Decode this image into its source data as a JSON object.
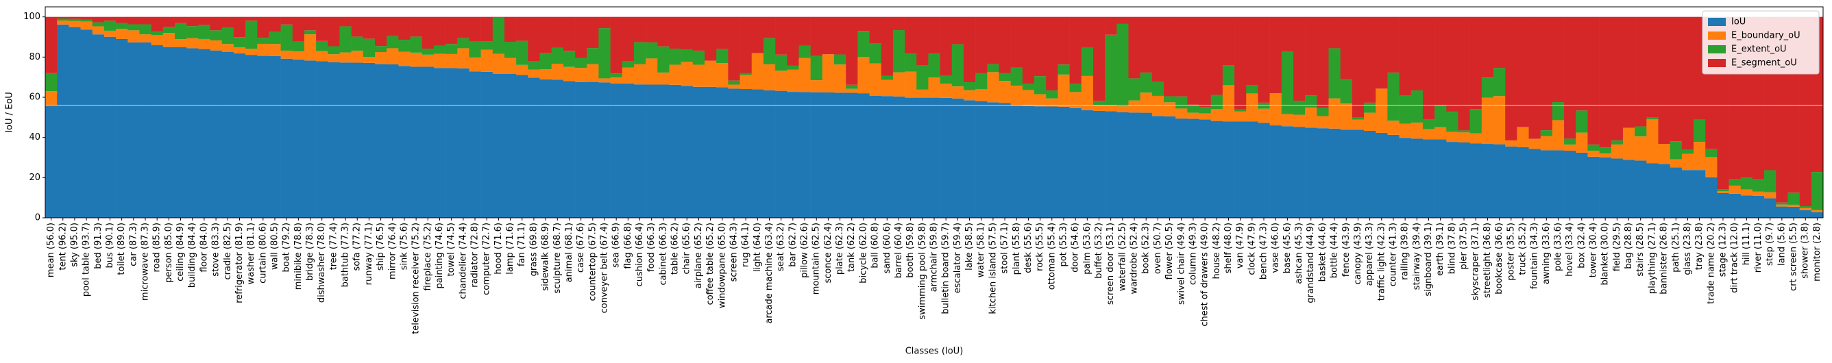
{
  "chart_data": {
    "type": "stacked_bar",
    "x_label": "Classes (IoU)",
    "y_label": "IoU / EoU",
    "categories": [
      "mean (56.0)",
      "tent (96.2)",
      "sky (95.0)",
      "pool table (93.7)",
      "bed (91.3)",
      "bus (90.1)",
      "toilet (89.0)",
      "car (87.3)",
      "microwave (87.3)",
      "road (85.9)",
      "person (85.0)",
      "ceiling (84.9)",
      "building (84.4)",
      "floor (84.0)",
      "stove (83.3)",
      "cradle (82.5)",
      "refrigerator (81.9)",
      "washer (81.1)",
      "curtain (80.6)",
      "wall (80.5)",
      "boat (79.2)",
      "minibike (78.8)",
      "bridge (78.3)",
      "dishwasher (78.0)",
      "tree (77.4)",
      "bathtub (77.3)",
      "sofa (77.2)",
      "runway (77.1)",
      "ship (76.5)",
      "mirror (76.4)",
      "sink (75.6)",
      "television receiver (75.2)",
      "fireplace (75.2)",
      "painting (74.6)",
      "towel (74.5)",
      "chandelier (74.4)",
      "radiator (72.8)",
      "computer (72.7)",
      "hood (71.6)",
      "lamp (71.6)",
      "fan (71.1)",
      "grass (69.8)",
      "sidewalk (68.9)",
      "sculpture (68.7)",
      "animal (68.1)",
      "case (67.6)",
      "countertop (67.5)",
      "conveyer belt (67.4)",
      "sea (66.9)",
      "flag (66.8)",
      "cushion (66.4)",
      "food (66.3)",
      "cabinet (66.3)",
      "table (66.2)",
      "chair (65.6)",
      "airplane (65.2)",
      "coffee table (65.2)",
      "windowpane (65.0)",
      "screen (64.3)",
      "rug (64.1)",
      "light (64.0)",
      "arcade machine (63.4)",
      "seat (63.2)",
      "bar (62.7)",
      "pillow (62.6)",
      "mountain (62.5)",
      "sconce (62.4)",
      "plate (62.3)",
      "tank (62.2)",
      "bicycle (62.0)",
      "ball (60.8)",
      "sand (60.6)",
      "barrel (60.4)",
      "booth (59.8)",
      "swimming pool (59.8)",
      "armchair (59.8)",
      "bulletin board (59.7)",
      "escalator (59.4)",
      "lake (58.5)",
      "water (58.1)",
      "kitchen island (57.5)",
      "stool (57.1)",
      "plant (55.8)",
      "desk (55.6)",
      "rock (55.5)",
      "ottoman (55.4)",
      "pot (55.3)",
      "door (54.6)",
      "palm (53.6)",
      "buffet (53.2)",
      "screen door (53.1)",
      "waterfall (52.5)",
      "wardrobe (52.4)",
      "book (52.3)",
      "oven (50.7)",
      "flower (50.5)",
      "swivel chair (49.4)",
      "column (49.3)",
      "chest of drawers (49.0)",
      "house (48.2)",
      "shelf (48.0)",
      "van (47.9)",
      "clock (47.9)",
      "bench (47.3)",
      "vase (46.0)",
      "base (45.6)",
      "ashcan (45.3)",
      "grandstand (44.9)",
      "basket (44.6)",
      "bottle (44.4)",
      "fence (43.9)",
      "canopy (43.9)",
      "apparel (43.3)",
      "traffic light (42.3)",
      "counter (41.3)",
      "railing (39.8)",
      "stairway (39.4)",
      "signboard (39.1)",
      "earth (39.1)",
      "blind (37.8)",
      "pier (37.5)",
      "skyscraper (37.1)",
      "streetlight (36.8)",
      "bookcase (36.6)",
      "poster (35.5)",
      "truck (35.2)",
      "fountain (34.3)",
      "awning (33.6)",
      "pole (33.6)",
      "hovel (33.4)",
      "box (32.4)",
      "tower (30.4)",
      "blanket (30.0)",
      "field (29.5)",
      "bag (28.8)",
      "stairs (28.5)",
      "plaything (27.1)",
      "bannister (26.8)",
      "path (25.1)",
      "glass (23.8)",
      "tray (23.8)",
      "trade name (20.2)",
      "stage (12.3)",
      "dirt track (12.0)",
      "hill (11.1)",
      "river (11.0)",
      "step (9.7)",
      "land (5.6)",
      "crt screen (5.5)",
      "shower (3.8)",
      "monitor (2.8)"
    ],
    "series": [
      {
        "name": "IoU",
        "color": "#1f77b4",
        "values": [
          56.0,
          96.2,
          95.0,
          93.7,
          91.3,
          90.1,
          89.0,
          87.3,
          87.3,
          85.9,
          85.0,
          84.9,
          84.4,
          84.0,
          83.3,
          82.5,
          81.9,
          81.1,
          80.6,
          80.5,
          79.2,
          78.8,
          78.3,
          78.0,
          77.4,
          77.3,
          77.2,
          77.1,
          76.5,
          76.4,
          75.6,
          75.2,
          75.2,
          74.6,
          74.5,
          74.4,
          72.8,
          72.7,
          71.6,
          71.6,
          71.1,
          69.8,
          68.9,
          68.7,
          68.1,
          67.6,
          67.5,
          67.4,
          66.9,
          66.8,
          66.4,
          66.3,
          66.3,
          66.2,
          65.6,
          65.2,
          65.2,
          65.0,
          64.3,
          64.1,
          64.0,
          63.4,
          63.2,
          62.7,
          62.6,
          62.5,
          62.4,
          62.3,
          62.2,
          62.0,
          60.8,
          60.6,
          60.4,
          59.8,
          59.8,
          59.8,
          59.7,
          59.4,
          58.5,
          58.1,
          57.5,
          57.1,
          55.8,
          55.6,
          55.5,
          55.4,
          55.3,
          54.6,
          53.6,
          53.2,
          53.1,
          52.5,
          52.4,
          52.3,
          50.7,
          50.5,
          49.4,
          49.3,
          49.0,
          48.2,
          48.0,
          47.9,
          47.9,
          47.3,
          46.0,
          45.6,
          45.3,
          44.9,
          44.6,
          44.4,
          43.9,
          43.9,
          43.3,
          42.3,
          41.3,
          39.8,
          39.4,
          39.1,
          39.1,
          37.8,
          37.5,
          37.1,
          36.8,
          36.6,
          35.5,
          35.2,
          34.3,
          33.6,
          33.6,
          33.4,
          32.4,
          30.4,
          30.0,
          29.5,
          28.8,
          28.5,
          27.1,
          26.8,
          25.1,
          23.8,
          23.8,
          20.2,
          12.3,
          12.0,
          11.1,
          11.0,
          9.7,
          5.6,
          5.5,
          3.8,
          2.8
        ]
      },
      {
        "name": "E_boundary_oU",
        "color": "#ff7f0e",
        "values": [
          7,
          2,
          3,
          4,
          4,
          3,
          5,
          6,
          4,
          5,
          7,
          4,
          5,
          5,
          5,
          4,
          3,
          3,
          6,
          6,
          4,
          4,
          13,
          5,
          4,
          5,
          6,
          3,
          6,
          8,
          7,
          7,
          6,
          7,
          7,
          10,
          7,
          11,
          10,
          8,
          5,
          4,
          5,
          8,
          7,
          7,
          9,
          2,
          3,
          8,
          10,
          13,
          6,
          10,
          12,
          11,
          13,
          12,
          2,
          7,
          18,
          13,
          10,
          11,
          17,
          6,
          19,
          14,
          2,
          18,
          16,
          8,
          12,
          13,
          4,
          10,
          7,
          6,
          5,
          6,
          15,
          11,
          10,
          8,
          6,
          4,
          16,
          8,
          17,
          3,
          3,
          3,
          6,
          10,
          10,
          7,
          5,
          3,
          3,
          6,
          18,
          5,
          14,
          7,
          16,
          6,
          6,
          10,
          6,
          15,
          13,
          5,
          9,
          22,
          7,
          7,
          8,
          5,
          6,
          5,
          5,
          5,
          23,
          24,
          3,
          10,
          5,
          7,
          15,
          3,
          10,
          3,
          2,
          7,
          16,
          12,
          22,
          10,
          4,
          8,
          14,
          10,
          1,
          4,
          3,
          2,
          3,
          1,
          1,
          1,
          1
        ]
      },
      {
        "name": "E_extent_oU",
        "color": "#2ca02c",
        "values": [
          9,
          1,
          1,
          1,
          2,
          5,
          3,
          3,
          5,
          2,
          3,
          8,
          6,
          7,
          5,
          8,
          5,
          14,
          3,
          6,
          13,
          5,
          2,
          5,
          4,
          13,
          7,
          9,
          3,
          6,
          6,
          8,
          3,
          4,
          5,
          5,
          8,
          4,
          18,
          8,
          12,
          4,
          8,
          8,
          8,
          5,
          8,
          25,
          2,
          3,
          11,
          8,
          13,
          8,
          6,
          7,
          0,
          7,
          2,
          1,
          0,
          13,
          8,
          2,
          6,
          12,
          0,
          5,
          2,
          13,
          10,
          2,
          21,
          9,
          12,
          12,
          4,
          21,
          4,
          8,
          4,
          4,
          9,
          3,
          9,
          4,
          5,
          4,
          14,
          2,
          35,
          41,
          11,
          10,
          7,
          3,
          6,
          4,
          3,
          7,
          10,
          1,
          4,
          3,
          0,
          31,
          7,
          6,
          4,
          25,
          12,
          1,
          5,
          0,
          24,
          14,
          16,
          5,
          11,
          10,
          1,
          12,
          10,
          14,
          0,
          0,
          0,
          3,
          9,
          3,
          11,
          3,
          3,
          2,
          0,
          5,
          1,
          0,
          9,
          2,
          11,
          4,
          1,
          3,
          6,
          6,
          11,
          1,
          6,
          1,
          19
        ]
      },
      {
        "name": "E_segment_oU",
        "color": "#d62728",
        "values": [
          28,
          0.8,
          1,
          1.3,
          2.7,
          1.9,
          3,
          3.7,
          3.7,
          7.1,
          5,
          3.1,
          4.6,
          4,
          6.7,
          5.5,
          10.1,
          1.9,
          10.4,
          7.5,
          3.8,
          12.2,
          6.7,
          12,
          14.6,
          4.7,
          9.8,
          10.9,
          14.5,
          9.6,
          11.4,
          9.8,
          15.8,
          14.4,
          13.5,
          10.6,
          12.2,
          12.3,
          0.4,
          12.4,
          11.9,
          22.2,
          18.1,
          15.3,
          16.9,
          20.4,
          15.5,
          5.6,
          28.1,
          22.2,
          12.6,
          12.7,
          14.7,
          15.8,
          16.4,
          16.8,
          21.8,
          16,
          31.7,
          27.9,
          18,
          10.6,
          18.8,
          24.3,
          14.4,
          19.5,
          18.6,
          18.7,
          33.8,
          7,
          13.2,
          29.4,
          6.6,
          18.2,
          24.2,
          18.2,
          29.3,
          13.6,
          32.5,
          27.9,
          23.5,
          27.9,
          25.2,
          33.4,
          29.5,
          36.6,
          23.7,
          33.4,
          15.4,
          41.8,
          8.9,
          3.5,
          30.6,
          27.7,
          32.3,
          39.5,
          39.6,
          43.7,
          45,
          38.8,
          24,
          46.1,
          34.1,
          42.7,
          38,
          17.4,
          41.7,
          39.1,
          45.4,
          15.6,
          31.1,
          50.1,
          42.7,
          35.7,
          27.7,
          39.2,
          36.6,
          50.9,
          43.9,
          47.2,
          56.5,
          45.9,
          30.2,
          25.4,
          61.5,
          54.8,
          60.7,
          56.4,
          42.4,
          60.6,
          46.6,
          63.6,
          65,
          61.5,
          55.2,
          54.5,
          49.9,
          63.2,
          61.9,
          66.2,
          51.2,
          65.8,
          85.7,
          81,
          79.9,
          81,
          76.3,
          92.4,
          87.5,
          94.2,
          77.2
        ]
      }
    ],
    "ylim": [
      0,
      105
    ],
    "yticks": [
      0,
      20,
      40,
      60,
      80,
      100
    ],
    "legend": "upper right"
  }
}
